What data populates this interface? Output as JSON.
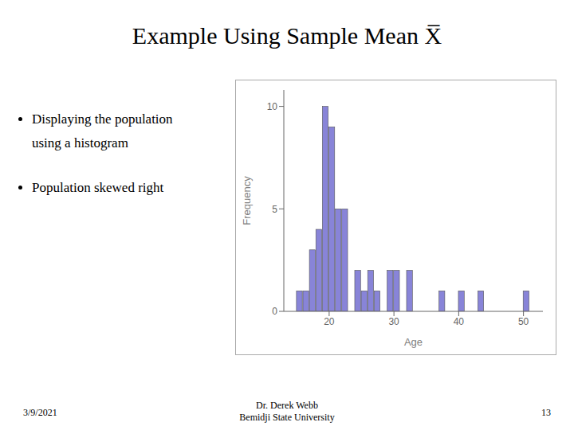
{
  "chart_data": {
    "type": "histogram",
    "title": "Example Using Sample Mean X̅",
    "annotations": [
      "Displaying the population",
      "using a histogram",
      "Population skewed right",
      "3/9/2021",
      "Dr. Derek Webb\nBemidji State University",
      "13"
    ],
    "x": [
      15,
      16,
      17,
      18,
      19,
      20,
      21,
      22,
      24,
      25,
      26,
      27,
      29,
      30,
      32,
      37,
      40,
      43,
      50
    ],
    "values": [
      1,
      1,
      3,
      4,
      10,
      9,
      5,
      5,
      2,
      1,
      2,
      1,
      2,
      2,
      2,
      1,
      1,
      1,
      1
    ],
    "xlabel": "Age",
    "ylabel": "Frequency",
    "xlim": [
      13,
      53
    ],
    "ylim": [
      0,
      10.8
    ],
    "xticks": [
      20,
      30,
      40,
      50
    ],
    "yticks": [
      0,
      5,
      10
    ],
    "grid": false
  }
}
